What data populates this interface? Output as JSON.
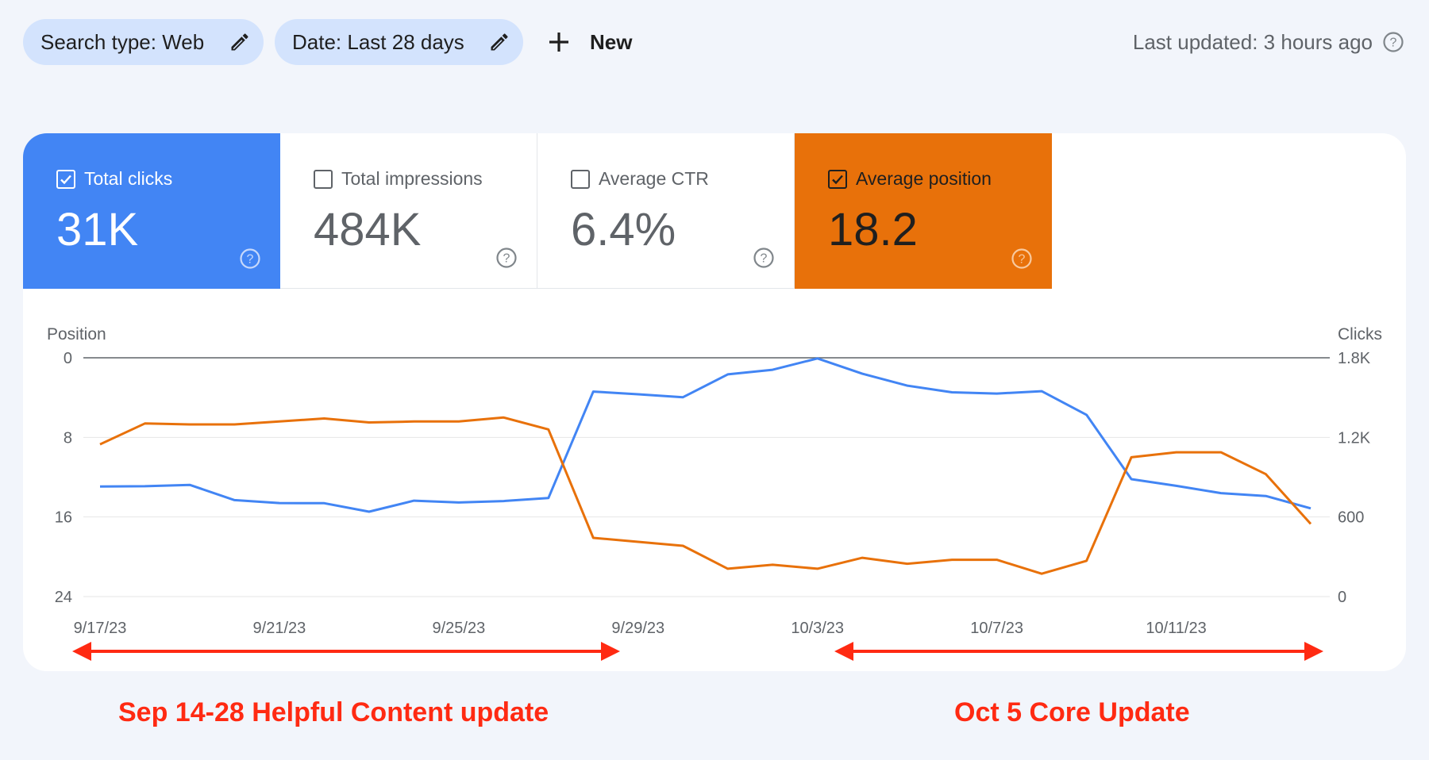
{
  "toolbar": {
    "search_type": "Search type: Web",
    "date": "Date: Last 28 days",
    "new_label": "New",
    "last_updated": "Last updated: 3 hours ago"
  },
  "metrics": {
    "clicks": {
      "label": "Total clicks",
      "value": "31K",
      "checked": true,
      "color": "#4285f4"
    },
    "impressions": {
      "label": "Total impressions",
      "value": "484K",
      "checked": false
    },
    "ctr": {
      "label": "Average CTR",
      "value": "6.4%",
      "checked": false
    },
    "position": {
      "label": "Average position",
      "value": "18.2",
      "checked": true,
      "color": "#e8710a"
    }
  },
  "chart_data": {
    "type": "line",
    "left_axis_label": "Position",
    "right_axis_label": "Clicks",
    "left_ticks": [
      "0",
      "8",
      "16",
      "24"
    ],
    "right_ticks": [
      "1.8K",
      "1.2K",
      "600",
      "0"
    ],
    "left_ylim": [
      24,
      0
    ],
    "right_ylim": [
      0,
      1800
    ],
    "x_tick_labels": [
      "9/17/23",
      "9/21/23",
      "9/25/23",
      "9/29/23",
      "10/3/23",
      "10/7/23",
      "10/11/23"
    ],
    "x_tick_indices": [
      0,
      4,
      8,
      12,
      16,
      20,
      24
    ],
    "grid": true,
    "series": [
      {
        "name": "Clicks",
        "axis": "right",
        "color": "#4285f4",
        "values": [
          830,
          832,
          842,
          727,
          705,
          704,
          640,
          723,
          709,
          720,
          743,
          1545,
          1525,
          1503,
          1675,
          1710,
          1795,
          1680,
          1590,
          1540,
          1530,
          1548,
          1370,
          885,
          835,
          780,
          758,
          665
        ]
      },
      {
        "name": "Average position",
        "axis": "left",
        "color": "#e8710a",
        "values": [
          8.7,
          6.6,
          6.7,
          6.7,
          6.4,
          6.1,
          6.5,
          6.4,
          6.4,
          6.0,
          7.2,
          18.1,
          18.5,
          18.9,
          21.2,
          20.8,
          21.2,
          20.1,
          20.7,
          20.3,
          20.3,
          21.7,
          20.4,
          10.0,
          9.5,
          9.5,
          11.7,
          16.7
        ]
      }
    ]
  },
  "annotations": {
    "left_label": "Sep 14-28 Helpful Content update",
    "right_label": "Oct 5 Core Update",
    "color": "#ff2a12"
  }
}
